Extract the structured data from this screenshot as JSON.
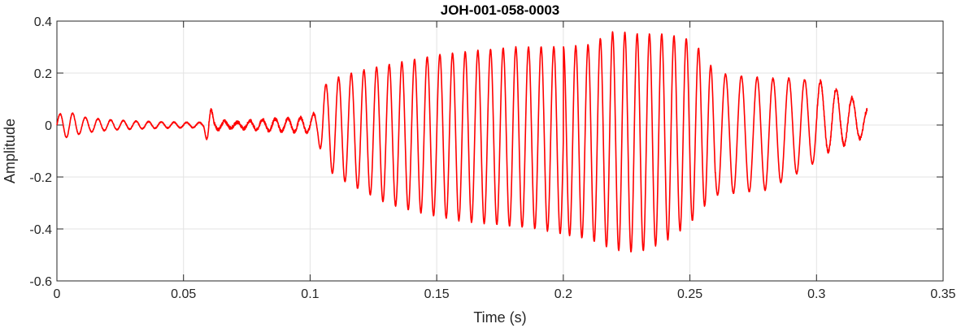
{
  "chart_data": {
    "type": "line",
    "title": "JOH-001-058-0003",
    "xlabel": "Time (s)",
    "ylabel": "Amplitude",
    "xlim": [
      0,
      0.35
    ],
    "ylim": [
      -0.6,
      0.4
    ],
    "x_ticks": [
      0,
      0.05,
      0.1,
      0.15,
      0.2,
      0.25,
      0.3,
      0.35
    ],
    "x_tick_labels": [
      "0",
      "0.05",
      "0.1",
      "0.15",
      "0.2",
      "0.25",
      "0.3",
      "0.35"
    ],
    "y_ticks": [
      -0.6,
      -0.4,
      -0.2,
      0,
      0.2,
      0.4
    ],
    "y_tick_labels": [
      "-0.6",
      "-0.4",
      "-0.2",
      "0",
      "0.2",
      "0.4"
    ],
    "grid": true,
    "line_color": "#ff0000",
    "series": [
      {
        "color": "#ff0000",
        "note_signal_shape": "oscillating waveform; values below are the positive/negative envelope peaks",
        "envelope_x": [
          0,
          0.005,
          0.01,
          0.02,
          0.03,
          0.04,
          0.05,
          0.058,
          0.06,
          0.062,
          0.07,
          0.08,
          0.09,
          0.1,
          0.103,
          0.105,
          0.11,
          0.12,
          0.13,
          0.14,
          0.15,
          0.16,
          0.17,
          0.18,
          0.19,
          0.2,
          0.21,
          0.22,
          0.23,
          0.24,
          0.25,
          0.255,
          0.26,
          0.27,
          0.28,
          0.29,
          0.3,
          0.305,
          0.31,
          0.315,
          0.32
        ],
        "envelope_upper": [
          0.04,
          0.05,
          0.03,
          0.02,
          0.015,
          0.012,
          0.01,
          0.01,
          0.1,
          0.02,
          0.01,
          0.02,
          0.025,
          0.03,
          0.06,
          0.15,
          0.18,
          0.21,
          0.23,
          0.25,
          0.27,
          0.28,
          0.29,
          0.3,
          0.3,
          0.3,
          0.31,
          0.36,
          0.35,
          0.35,
          0.33,
          0.28,
          0.2,
          0.19,
          0.18,
          0.18,
          0.17,
          0.16,
          0.12,
          0.1,
          0.06
        ],
        "envelope_lower": [
          -0.04,
          -0.05,
          -0.03,
          -0.02,
          -0.015,
          -0.012,
          -0.01,
          -0.01,
          -0.1,
          -0.02,
          -0.01,
          -0.02,
          -0.025,
          -0.03,
          -0.05,
          -0.14,
          -0.2,
          -0.25,
          -0.3,
          -0.33,
          -0.35,
          -0.37,
          -0.38,
          -0.39,
          -0.4,
          -0.42,
          -0.44,
          -0.48,
          -0.49,
          -0.45,
          -0.38,
          -0.32,
          -0.27,
          -0.26,
          -0.25,
          -0.2,
          -0.14,
          -0.1,
          -0.08,
          -0.06,
          -0.04
        ],
        "cycle_period_s": 0.005
      }
    ]
  }
}
